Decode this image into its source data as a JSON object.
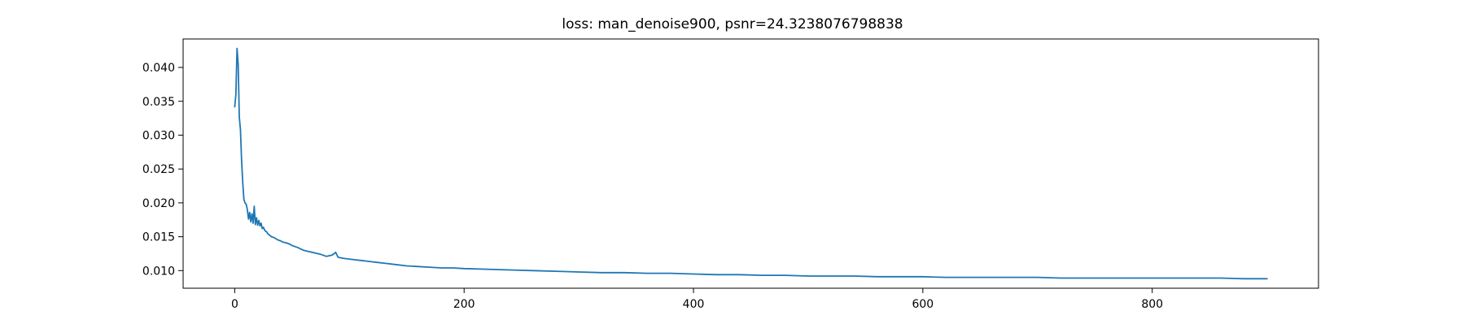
{
  "chart_data": {
    "type": "line",
    "title": "loss: man_denoise900, psnr=24.3238076798838",
    "xlabel": "",
    "ylabel": "",
    "xlim": [
      -45,
      945
    ],
    "ylim": [
      0.0074,
      0.0442
    ],
    "x_ticks": [
      0,
      200,
      400,
      600,
      800
    ],
    "y_ticks": [
      0.01,
      0.015,
      0.02,
      0.025,
      0.03,
      0.035,
      0.04
    ],
    "x_tick_labels": [
      "0",
      "200",
      "400",
      "600",
      "800"
    ],
    "y_tick_labels": [
      "0.010",
      "0.015",
      "0.020",
      "0.025",
      "0.030",
      "0.035",
      "0.040"
    ],
    "grid": false,
    "series": [
      {
        "color": "#1f77b4",
        "x": [
          0,
          1,
          2,
          3,
          4,
          5,
          6,
          7,
          8,
          9,
          10,
          11,
          12,
          13,
          14,
          15,
          16,
          17,
          18,
          19,
          20,
          21,
          22,
          23,
          24,
          25,
          26,
          27,
          28,
          29,
          30,
          32,
          34,
          36,
          38,
          40,
          42,
          45,
          48,
          50,
          55,
          60,
          65,
          70,
          75,
          80,
          85,
          88,
          90,
          92,
          95,
          100,
          105,
          110,
          115,
          120,
          125,
          130,
          140,
          150,
          160,
          170,
          180,
          190,
          200,
          220,
          240,
          260,
          280,
          300,
          320,
          340,
          360,
          380,
          400,
          420,
          440,
          460,
          480,
          500,
          520,
          540,
          560,
          580,
          600,
          620,
          640,
          660,
          680,
          700,
          720,
          740,
          760,
          780,
          800,
          820,
          840,
          860,
          880,
          900
        ],
        "y": [
          0.0342,
          0.036,
          0.0428,
          0.0405,
          0.0326,
          0.0308,
          0.0262,
          0.023,
          0.0205,
          0.02,
          0.0198,
          0.019,
          0.0176,
          0.0186,
          0.0172,
          0.0184,
          0.017,
          0.0195,
          0.0168,
          0.0178,
          0.0167,
          0.0174,
          0.0166,
          0.017,
          0.0162,
          0.0164,
          0.016,
          0.0158,
          0.0157,
          0.0154,
          0.0153,
          0.015,
          0.0149,
          0.0147,
          0.0145,
          0.0144,
          0.0142,
          0.0141,
          0.0139,
          0.0137,
          0.0134,
          0.013,
          0.0128,
          0.0126,
          0.0124,
          0.0121,
          0.0123,
          0.0127,
          0.012,
          0.0119,
          0.0118,
          0.0117,
          0.0116,
          0.0115,
          0.0114,
          0.0113,
          0.0112,
          0.0111,
          0.0109,
          0.0107,
          0.0106,
          0.0105,
          0.0104,
          0.0104,
          0.0103,
          0.0102,
          0.0101,
          0.01,
          0.0099,
          0.0098,
          0.0097,
          0.0097,
          0.0096,
          0.0096,
          0.0095,
          0.0094,
          0.0094,
          0.0093,
          0.0093,
          0.0092,
          0.0092,
          0.0092,
          0.0091,
          0.0091,
          0.0091,
          0.009,
          0.009,
          0.009,
          0.009,
          0.009,
          0.0089,
          0.0089,
          0.0089,
          0.0089,
          0.0089,
          0.0089,
          0.0089,
          0.0089,
          0.0088,
          0.0088
        ]
      }
    ]
  }
}
